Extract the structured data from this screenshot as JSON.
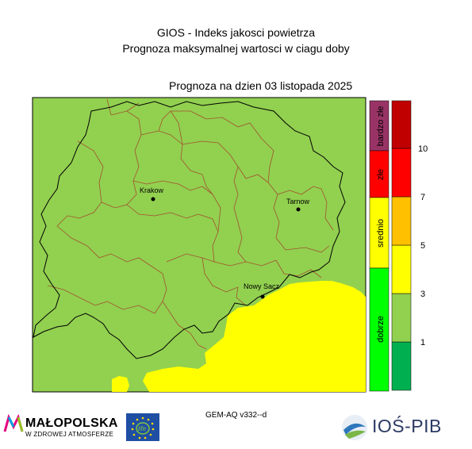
{
  "header": {
    "title_line1": "GIOS - Indeks jakosci powietrza",
    "title_line2": "Prognoza maksymalnej wartosci w ciagu doby",
    "date_line": "Prognoza na dzien  03 listopada 2025"
  },
  "map": {
    "cities": [
      {
        "name": "Krakow"
      },
      {
        "name": "Tarnow"
      },
      {
        "name": "Nowy Sacz"
      }
    ],
    "colors": {
      "dobrze": "#92d050",
      "srednio": "#ffff00",
      "border_region": "#000000",
      "border_county": "#a0522d"
    }
  },
  "legend": {
    "categories": [
      {
        "label": "bardzo złe",
        "color": "#993366"
      },
      {
        "label": "złe",
        "color": "#ff0000"
      },
      {
        "label": "srednio",
        "color": "#ffff00"
      },
      {
        "label": "dobrze",
        "color": "#00ff00"
      }
    ],
    "scale": {
      "colors": [
        "#00b050",
        "#92d050",
        "#ffff00",
        "#ffc000",
        "#ff0000",
        "#c00000"
      ],
      "ticks": [
        "1",
        "3",
        "5",
        "7",
        "10"
      ]
    }
  },
  "footer": {
    "model": "GEM-AQ v332--d",
    "malopolska_name": "MAŁOPOLSKA",
    "malopolska_sub": "W ZDROWEJ ATMOSFERZE",
    "eu_flag_text": "life",
    "ios_name": "IOŚ-PIB"
  }
}
